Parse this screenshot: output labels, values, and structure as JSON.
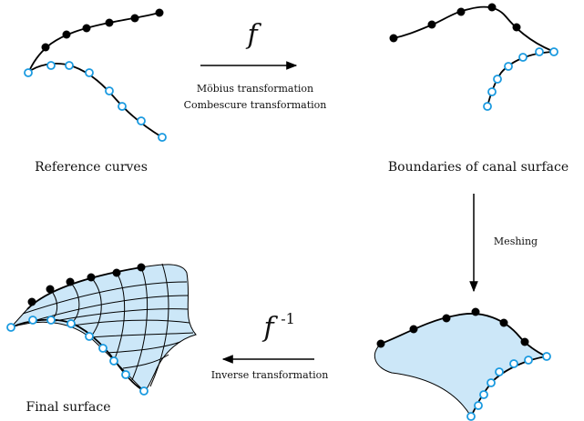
{
  "top_arrow": {
    "symbol": "f",
    "labels": [
      "Möbius transformation",
      "Combescure transformation"
    ]
  },
  "right_arrow": {
    "label": "Meshing"
  },
  "bottom_arrow": {
    "symbol": "f",
    "superscript": "-1",
    "label": "Inverse transformation"
  },
  "panels": {
    "reference": "Reference curves",
    "boundaries": "Boundaries of canal surface",
    "final": "Final surface"
  }
}
